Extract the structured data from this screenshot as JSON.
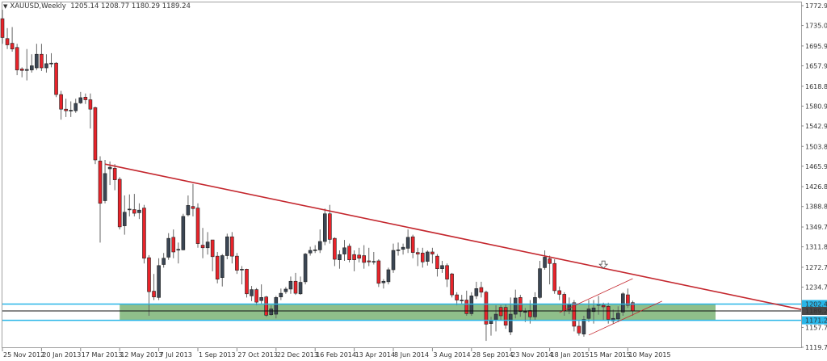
{
  "header": {
    "symbol": "XAUUSD,Weekly",
    "ohlc": "1205.14 1208.77 1180.29 1189.24",
    "menu_icon": "triangle-down-icon"
  },
  "colors": {
    "bull": "#3b4654",
    "bear": "#e8232a",
    "trendline": "#c4272e",
    "level": "#29b6e8",
    "zone": "#8fbf8a",
    "current_price_box": "#4a4a4a"
  },
  "price_axis": {
    "labels": [
      "1772.95",
      "1735.00",
      "1695.90",
      "1657.95",
      "1618.85",
      "1580.90",
      "1542.95",
      "1503.85",
      "1465.90",
      "1426.80",
      "1388.85",
      "1349.75",
      "1311.80",
      "1272.70",
      "1234.75",
      "1157.70",
      "1119.75"
    ],
    "range": [
      1119.75,
      1772.95
    ]
  },
  "levels": {
    "resistance": "1202.43",
    "current": "1189.24",
    "support": "1171.27"
  },
  "time_axis": {
    "labels": [
      "25 Nov 2012",
      "20 Jan 2013",
      "17 Mar 2013",
      "12 May 2013",
      "7 Jul 2013",
      "1 Sep 2013",
      "27 Oct 2013",
      "22 Dec 2013",
      "16 Feb 2014",
      "13 Apr 2014",
      "8 Jun 2014",
      "3 Aug 2014",
      "28 Sep 2014",
      "23 Nov 2014",
      "18 Jan 2015",
      "15 Mar 2015",
      "10 May 2015"
    ],
    "weeks_per_label": 8
  },
  "annotations": {
    "zone": {
      "from_week": 24,
      "to_week": 147,
      "low": 1171.27,
      "high": 1202.43
    },
    "trendline": {
      "start": [
        21,
        1470
      ],
      "end": [
        164,
        1192
      ]
    },
    "channel_upper": {
      "start": [
        114,
        1186
      ],
      "end": [
        129,
        1251
      ]
    },
    "channel_lower": {
      "start": [
        120,
        1143
      ],
      "end": [
        135,
        1208
      ]
    },
    "arrow": {
      "week": 123,
      "price": 1277,
      "icon": "hollow-down-arrow-icon"
    }
  },
  "chart_data": {
    "type": "candlestick",
    "title": "XAUUSD,Weekly",
    "ylim": [
      1119.75,
      1772.95
    ],
    "grid": false,
    "ohlc": [
      [
        1748,
        1765,
        1700,
        1712
      ],
      [
        1710,
        1730,
        1690,
        1698
      ],
      [
        1701,
        1732,
        1685,
        1690
      ],
      [
        1693,
        1700,
        1640,
        1650
      ],
      [
        1652,
        1655,
        1636,
        1649
      ],
      [
        1649,
        1690,
        1630,
        1651
      ],
      [
        1650,
        1680,
        1645,
        1658
      ],
      [
        1654,
        1700,
        1650,
        1680
      ],
      [
        1680,
        1700,
        1648,
        1654
      ],
      [
        1654,
        1680,
        1645,
        1662
      ],
      [
        1662,
        1682,
        1655,
        1663
      ],
      [
        1663,
        1665,
        1598,
        1603
      ],
      [
        1603,
        1610,
        1555,
        1575
      ],
      [
        1575,
        1595,
        1560,
        1572
      ],
      [
        1572,
        1590,
        1560,
        1573
      ],
      [
        1572,
        1595,
        1568,
        1586
      ],
      [
        1587,
        1608,
        1585,
        1597
      ],
      [
        1598,
        1605,
        1585,
        1593
      ],
      [
        1593,
        1605,
        1538,
        1575
      ],
      [
        1578,
        1580,
        1470,
        1478
      ],
      [
        1476,
        1485,
        1320,
        1395
      ],
      [
        1400,
        1478,
        1395,
        1452
      ],
      [
        1461,
        1475,
        1430,
        1464
      ],
      [
        1462,
        1470,
        1420,
        1440
      ],
      [
        1441,
        1445,
        1345,
        1350
      ],
      [
        1352,
        1410,
        1335,
        1378
      ],
      [
        1383,
        1412,
        1370,
        1384
      ],
      [
        1383,
        1413,
        1370,
        1376
      ],
      [
        1377,
        1395,
        1365,
        1382
      ],
      [
        1386,
        1392,
        1280,
        1290
      ],
      [
        1291,
        1296,
        1180,
        1226
      ],
      [
        1227,
        1260,
        1210,
        1216
      ],
      [
        1215,
        1290,
        1210,
        1276
      ],
      [
        1278,
        1300,
        1272,
        1290
      ],
      [
        1292,
        1338,
        1287,
        1328
      ],
      [
        1330,
        1345,
        1290,
        1302
      ],
      [
        1306,
        1320,
        1280,
        1307
      ],
      [
        1306,
        1375,
        1305,
        1370
      ],
      [
        1373,
        1410,
        1370,
        1391
      ],
      [
        1389,
        1432,
        1370,
        1385
      ],
      [
        1386,
        1395,
        1310,
        1318
      ],
      [
        1315,
        1348,
        1290,
        1310
      ],
      [
        1310,
        1340,
        1297,
        1321
      ],
      [
        1325,
        1325,
        1265,
        1293
      ],
      [
        1294,
        1302,
        1242,
        1250
      ],
      [
        1253,
        1298,
        1236,
        1295
      ],
      [
        1295,
        1337,
        1288,
        1331
      ],
      [
        1331,
        1340,
        1280,
        1294
      ],
      [
        1294,
        1300,
        1260,
        1267
      ],
      [
        1268,
        1275,
        1240,
        1269
      ],
      [
        1269,
        1270,
        1215,
        1222
      ],
      [
        1218,
        1237,
        1208,
        1230
      ],
      [
        1230,
        1233,
        1200,
        1206
      ],
      [
        1209,
        1240,
        1202,
        1215
      ],
      [
        1216,
        1218,
        1178,
        1181
      ],
      [
        1182,
        1200,
        1180,
        1193
      ],
      [
        1183,
        1218,
        1175,
        1215
      ],
      [
        1216,
        1232,
        1210,
        1223
      ],
      [
        1226,
        1235,
        1222,
        1231
      ],
      [
        1231,
        1255,
        1222,
        1246
      ],
      [
        1246,
        1262,
        1220,
        1223
      ],
      [
        1222,
        1255,
        1220,
        1244
      ],
      [
        1245,
        1300,
        1240,
        1298
      ],
      [
        1300,
        1312,
        1295,
        1305
      ],
      [
        1305,
        1315,
        1300,
        1306
      ],
      [
        1306,
        1345,
        1300,
        1322
      ],
      [
        1322,
        1385,
        1315,
        1375
      ],
      [
        1375,
        1392,
        1318,
        1326
      ],
      [
        1328,
        1330,
        1275,
        1288
      ],
      [
        1287,
        1305,
        1270,
        1297
      ],
      [
        1298,
        1325,
        1285,
        1310
      ],
      [
        1313,
        1318,
        1282,
        1287
      ],
      [
        1297,
        1305,
        1265,
        1287
      ],
      [
        1296,
        1310,
        1282,
        1290
      ],
      [
        1295,
        1315,
        1270,
        1282
      ],
      [
        1285,
        1310,
        1275,
        1283
      ],
      [
        1284,
        1302,
        1278,
        1284
      ],
      [
        1285,
        1288,
        1235,
        1242
      ],
      [
        1243,
        1250,
        1232,
        1246
      ],
      [
        1245,
        1272,
        1240,
        1268
      ],
      [
        1268,
        1318,
        1262,
        1305
      ],
      [
        1305,
        1320,
        1295,
        1306
      ],
      [
        1307,
        1318,
        1297,
        1311
      ],
      [
        1309,
        1345,
        1300,
        1330
      ],
      [
        1331,
        1335,
        1290,
        1301
      ],
      [
        1301,
        1310,
        1275,
        1298
      ],
      [
        1300,
        1310,
        1272,
        1283
      ],
      [
        1284,
        1305,
        1276,
        1302
      ],
      [
        1302,
        1310,
        1280,
        1298
      ],
      [
        1294,
        1298,
        1255,
        1270
      ],
      [
        1270,
        1285,
        1262,
        1276
      ],
      [
        1276,
        1280,
        1235,
        1250
      ],
      [
        1260,
        1262,
        1215,
        1220
      ],
      [
        1220,
        1225,
        1200,
        1210
      ],
      [
        1209,
        1220,
        1203,
        1210
      ],
      [
        1210,
        1228,
        1180,
        1184
      ],
      [
        1184,
        1225,
        1180,
        1218
      ],
      [
        1218,
        1245,
        1212,
        1232
      ],
      [
        1234,
        1245,
        1215,
        1225
      ],
      [
        1225,
        1228,
        1132,
        1164
      ],
      [
        1165,
        1178,
        1142,
        1171
      ],
      [
        1172,
        1200,
        1150,
        1183
      ],
      [
        1196,
        1200,
        1172,
        1180
      ],
      [
        1196,
        1202,
        1155,
        1162
      ],
      [
        1149,
        1215,
        1143,
        1183
      ],
      [
        1183,
        1230,
        1175,
        1214
      ],
      [
        1215,
        1220,
        1178,
        1188
      ],
      [
        1188,
        1195,
        1168,
        1188
      ],
      [
        1190,
        1210,
        1165,
        1178
      ],
      [
        1178,
        1225,
        1172,
        1215
      ],
      [
        1215,
        1285,
        1212,
        1270
      ],
      [
        1272,
        1305,
        1268,
        1292
      ],
      [
        1289,
        1295,
        1240,
        1280
      ],
      [
        1280,
        1288,
        1222,
        1228
      ],
      [
        1228,
        1236,
        1210,
        1221
      ],
      [
        1221,
        1225,
        1180,
        1190
      ],
      [
        1191,
        1215,
        1183,
        1202
      ],
      [
        1205,
        1210,
        1150,
        1160
      ],
      [
        1160,
        1170,
        1142,
        1147
      ],
      [
        1145,
        1180,
        1140,
        1173
      ],
      [
        1175,
        1210,
        1168,
        1193
      ],
      [
        1188,
        1210,
        1165,
        1195
      ],
      [
        1200,
        1218,
        1182,
        1202
      ],
      [
        1200,
        1205,
        1172,
        1197
      ],
      [
        1198,
        1205,
        1165,
        1173
      ],
      [
        1170,
        1192,
        1165,
        1175
      ],
      [
        1174,
        1198,
        1168,
        1185
      ],
      [
        1187,
        1225,
        1180,
        1222
      ],
      [
        1220,
        1232,
        1195,
        1200
      ],
      [
        1205.14,
        1208.77,
        1180.29,
        1189.24
      ]
    ]
  }
}
